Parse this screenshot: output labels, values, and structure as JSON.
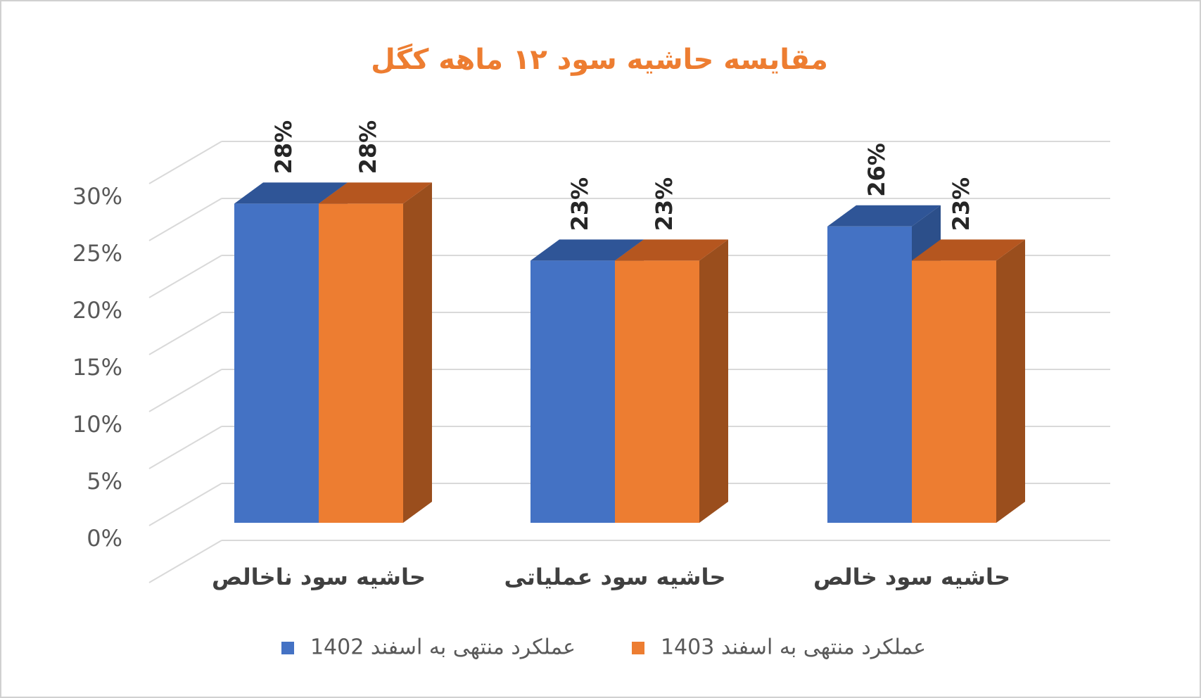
{
  "chart_data": {
    "type": "bar3d",
    "title": "مقایسه حاشیه سود ۱۲ ماهه کگل",
    "categories": [
      "حاشیه سود ناخالص",
      "حاشیه سود عملیاتی",
      "حاشیه سود خالص"
    ],
    "series": [
      {
        "name": "عملکرد منتهی به اسفند 1402",
        "color": "#4472c4",
        "top_color": "#2f5597",
        "side_color": "#2c4f8a",
        "values": [
          28,
          23,
          26
        ],
        "value_labels": [
          "28%",
          "23%",
          "26%"
        ]
      },
      {
        "name": "عملکرد منتهی به اسفند 1403",
        "color": "#ed7d31",
        "top_color": "#b5561f",
        "side_color": "#9a4e1d",
        "values": [
          28,
          23,
          23
        ],
        "value_labels": [
          "28%",
          "23%",
          "23%"
        ]
      }
    ],
    "ylim": [
      0,
      35
    ],
    "yticks": [
      {
        "value": 0,
        "label": "0%"
      },
      {
        "value": 5,
        "label": "5%"
      },
      {
        "value": 10,
        "label": "10%"
      },
      {
        "value": 15,
        "label": "15%"
      },
      {
        "value": 20,
        "label": "20%"
      },
      {
        "value": 25,
        "label": "25%"
      },
      {
        "value": 30,
        "label": "30%"
      }
    ],
    "grid": true,
    "legend": "bottom"
  }
}
